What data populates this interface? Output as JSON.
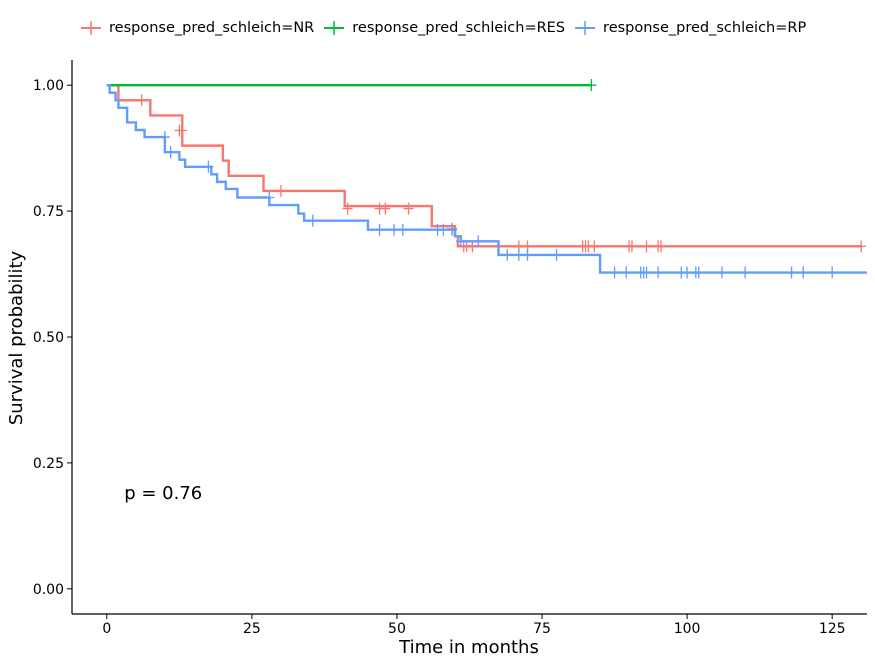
{
  "chart_data": {
    "type": "line",
    "subtype": "kaplan-meier survival curve",
    "xlabel": "Time in months",
    "ylabel": "Survival probability",
    "xlim": [
      -6,
      131
    ],
    "ylim": [
      -0.05,
      1.05
    ],
    "xticks": [
      0,
      25,
      50,
      75,
      100,
      125
    ],
    "yticks": [
      0.0,
      0.25,
      0.5,
      0.75,
      1.0
    ],
    "ytick_labels": [
      "0.00",
      "0.25",
      "0.50",
      "0.75",
      "1.00"
    ],
    "grid": false,
    "legend_position": "top",
    "annotation": "p = 0.76",
    "annotation_position": {
      "x": 3,
      "y": 0.19
    },
    "series": [
      {
        "name": "response_pred_schleich=NR",
        "color": "#F8766D",
        "steps": [
          [
            0,
            1.0
          ],
          [
            2,
            0.97
          ],
          [
            7.5,
            0.94
          ],
          [
            13,
            0.88
          ],
          [
            20,
            0.85
          ],
          [
            21,
            0.82
          ],
          [
            27,
            0.79
          ],
          [
            41,
            0.76
          ],
          [
            56,
            0.72
          ],
          [
            60,
            0.7
          ],
          [
            60.5,
            0.68
          ],
          [
            130,
            0.68
          ]
        ],
        "censor": [
          [
            6,
            0.97
          ],
          [
            12.5,
            0.91
          ],
          [
            13,
            0.91
          ],
          [
            30,
            0.79
          ],
          [
            41.5,
            0.755
          ],
          [
            47,
            0.755
          ],
          [
            48,
            0.755
          ],
          [
            52,
            0.755
          ],
          [
            59.5,
            0.715
          ],
          [
            61.5,
            0.68
          ],
          [
            62,
            0.68
          ],
          [
            63,
            0.68
          ],
          [
            71,
            0.68
          ],
          [
            72.5,
            0.68
          ],
          [
            82,
            0.68
          ],
          [
            82.5,
            0.68
          ],
          [
            83,
            0.68
          ],
          [
            84,
            0.68
          ],
          [
            90,
            0.68
          ],
          [
            90.5,
            0.68
          ],
          [
            93,
            0.68
          ],
          [
            95,
            0.68
          ],
          [
            95.5,
            0.68
          ],
          [
            130,
            0.68
          ]
        ]
      },
      {
        "name": "response_pred_schleich=RES",
        "color": "#00BA38",
        "steps": [
          [
            0,
            1.0
          ],
          [
            83.5,
            1.0
          ]
        ],
        "censor": [
          [
            83.5,
            1.0
          ]
        ]
      },
      {
        "name": "response_pred_schleich=RP",
        "color": "#619CFF",
        "steps": [
          [
            0,
            1.0
          ],
          [
            0.5,
            0.985
          ],
          [
            1.5,
            0.97
          ],
          [
            2,
            0.955
          ],
          [
            3.5,
            0.926
          ],
          [
            5,
            0.911
          ],
          [
            6.5,
            0.897
          ],
          [
            10,
            0.867
          ],
          [
            12.5,
            0.852
          ],
          [
            13.5,
            0.838
          ],
          [
            18,
            0.823
          ],
          [
            19,
            0.808
          ],
          [
            20.5,
            0.794
          ],
          [
            22.5,
            0.777
          ],
          [
            28,
            0.762
          ],
          [
            33,
            0.745
          ],
          [
            34,
            0.731
          ],
          [
            45,
            0.713
          ],
          [
            60,
            0.7
          ],
          [
            61,
            0.69
          ],
          [
            67.5,
            0.663
          ],
          [
            85,
            0.628
          ],
          [
            131,
            0.628
          ]
        ],
        "censor": [
          [
            10,
            0.897
          ],
          [
            11,
            0.867
          ],
          [
            17.5,
            0.838
          ],
          [
            28,
            0.777
          ],
          [
            35.5,
            0.731
          ],
          [
            47,
            0.713
          ],
          [
            49.5,
            0.713
          ],
          [
            51,
            0.713
          ],
          [
            57,
            0.713
          ],
          [
            58,
            0.713
          ],
          [
            59.5,
            0.713
          ],
          [
            61,
            0.69
          ],
          [
            64,
            0.69
          ],
          [
            69,
            0.663
          ],
          [
            71,
            0.663
          ],
          [
            72.5,
            0.663
          ],
          [
            77.5,
            0.663
          ],
          [
            87.5,
            0.628
          ],
          [
            89.5,
            0.628
          ],
          [
            92,
            0.628
          ],
          [
            92.5,
            0.628
          ],
          [
            93,
            0.628
          ],
          [
            95,
            0.628
          ],
          [
            99,
            0.628
          ],
          [
            100,
            0.628
          ],
          [
            101.5,
            0.628
          ],
          [
            102,
            0.628
          ],
          [
            106,
            0.628
          ],
          [
            110,
            0.628
          ],
          [
            118,
            0.628
          ],
          [
            120,
            0.628
          ],
          [
            125,
            0.628
          ]
        ]
      }
    ]
  }
}
